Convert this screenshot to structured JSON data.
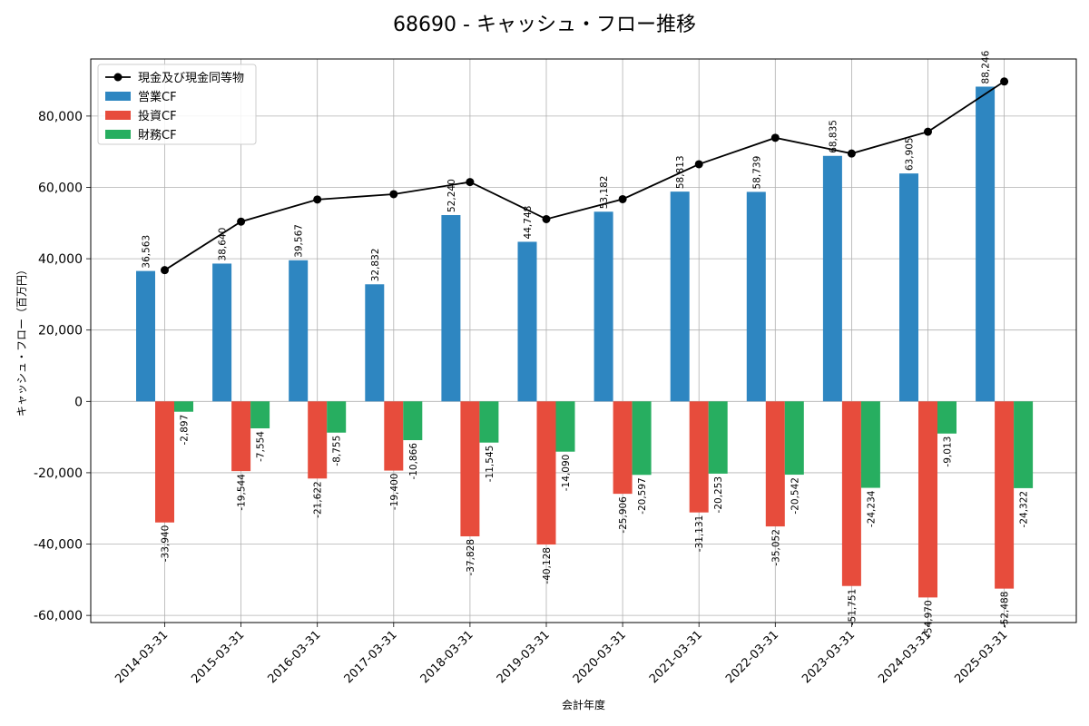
{
  "chart_data": {
    "type": "bar",
    "title": "68690 - キャッシュ・フロー推移",
    "xlabel": "会計年度",
    "ylabel": "キャッシュ・フロー（百万円）",
    "ylim": [
      -62000,
      96000
    ],
    "yticks": [
      -60000,
      -40000,
      -20000,
      0,
      20000,
      40000,
      60000,
      80000
    ],
    "ytick_labels": [
      "-60,000",
      "-40,000",
      "-20,000",
      "0",
      "20,000",
      "40,000",
      "60,000",
      "80,000"
    ],
    "grid": true,
    "legend_position": "top-left",
    "categories": [
      "2014-03-31",
      "2015-03-31",
      "2016-03-31",
      "2017-03-31",
      "2018-03-31",
      "2019-03-31",
      "2020-03-31",
      "2021-03-31",
      "2022-03-31",
      "2023-03-31",
      "2024-03-31",
      "2025-03-31"
    ],
    "series": [
      {
        "name": "営業CF",
        "kind": "bar",
        "color": "#2e86c1",
        "values": [
          36563,
          38640,
          39567,
          32832,
          52240,
          44748,
          53182,
          58813,
          58739,
          68835,
          63905,
          88246
        ],
        "labels": [
          "36,563",
          "38,640",
          "39,567",
          "32,832",
          "52,240",
          "44,748",
          "53,182",
          "58,813",
          "58,739",
          "68,835",
          "63,905",
          "88,246"
        ]
      },
      {
        "name": "投資CF",
        "kind": "bar",
        "color": "#e74c3c",
        "values": [
          -33940,
          -19544,
          -21622,
          -19400,
          -37828,
          -40128,
          -25906,
          -31131,
          -35052,
          -51751,
          -54970,
          -52488
        ],
        "labels": [
          "-33,940",
          "-19,544",
          "-21,622",
          "-19,400",
          "-37,828",
          "-40,128",
          "-25,906",
          "-31,131",
          "-35,052",
          "-51,751",
          "-54,970",
          "-52,488"
        ]
      },
      {
        "name": "財務CF",
        "kind": "bar",
        "color": "#27ae60",
        "values": [
          -2897,
          -7554,
          -8755,
          -10866,
          -11545,
          -14090,
          -20597,
          -20253,
          -20542,
          -24234,
          -9013,
          -24322
        ],
        "labels": [
          "-2,897",
          "-7,554",
          "-8,755",
          "-10,866",
          "-11,545",
          "-14,090",
          "-20,597",
          "-20,253",
          "-20,542",
          "-24,234",
          "-9,013",
          "-24,322"
        ]
      },
      {
        "name": "現金及び現金同等物",
        "kind": "line",
        "color": "#000000",
        "values": [
          36800,
          50400,
          56600,
          58100,
          61500,
          51100,
          56700,
          66500,
          73900,
          69500,
          75600,
          89700
        ]
      }
    ]
  }
}
